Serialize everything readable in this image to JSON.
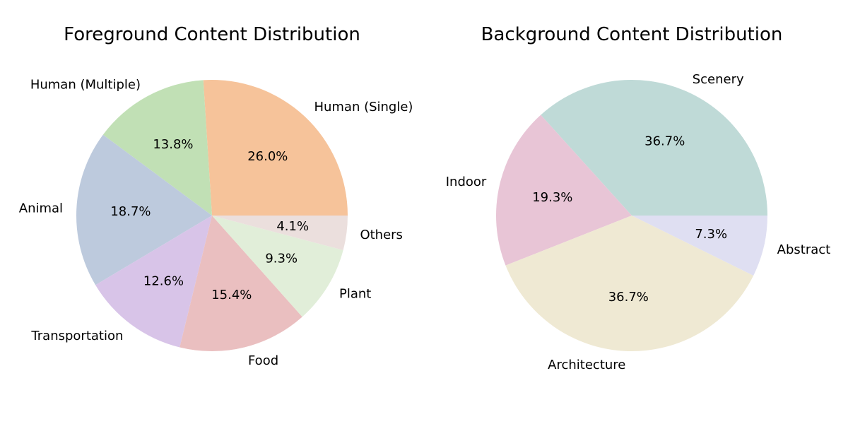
{
  "chart_data": [
    {
      "type": "pie",
      "title": "Foreground Content Distribution",
      "start_angle_deg": 0,
      "direction": "counterclockwise",
      "categories": [
        "Human (Single)",
        "Human (Multiple)",
        "Animal",
        "Transportation",
        "Food",
        "Plant",
        "Others"
      ],
      "values": [
        26.0,
        13.8,
        18.7,
        12.6,
        15.4,
        9.3,
        4.1
      ],
      "percent_labels": [
        "26.0%",
        "13.8%",
        "18.7%",
        "12.6%",
        "15.4%",
        "9.3%",
        "4.1%"
      ],
      "colors": [
        "#f6c39a",
        "#c1e0b5",
        "#bdcadd",
        "#d8c4e8",
        "#eabfc0",
        "#e1eed9",
        "#ebdfdd"
      ]
    },
    {
      "type": "pie",
      "title": "Background Content Distribution",
      "start_angle_deg": 0,
      "direction": "counterclockwise",
      "categories": [
        "Scenery",
        "Indoor",
        "Architecture",
        "Abstract"
      ],
      "values": [
        36.7,
        19.3,
        36.7,
        7.3
      ],
      "percent_labels": [
        "36.7%",
        "19.3%",
        "36.7%",
        "7.3%"
      ],
      "colors": [
        "#bfdad7",
        "#e8c5d6",
        "#efe9d3",
        "#dfdff2"
      ]
    }
  ]
}
